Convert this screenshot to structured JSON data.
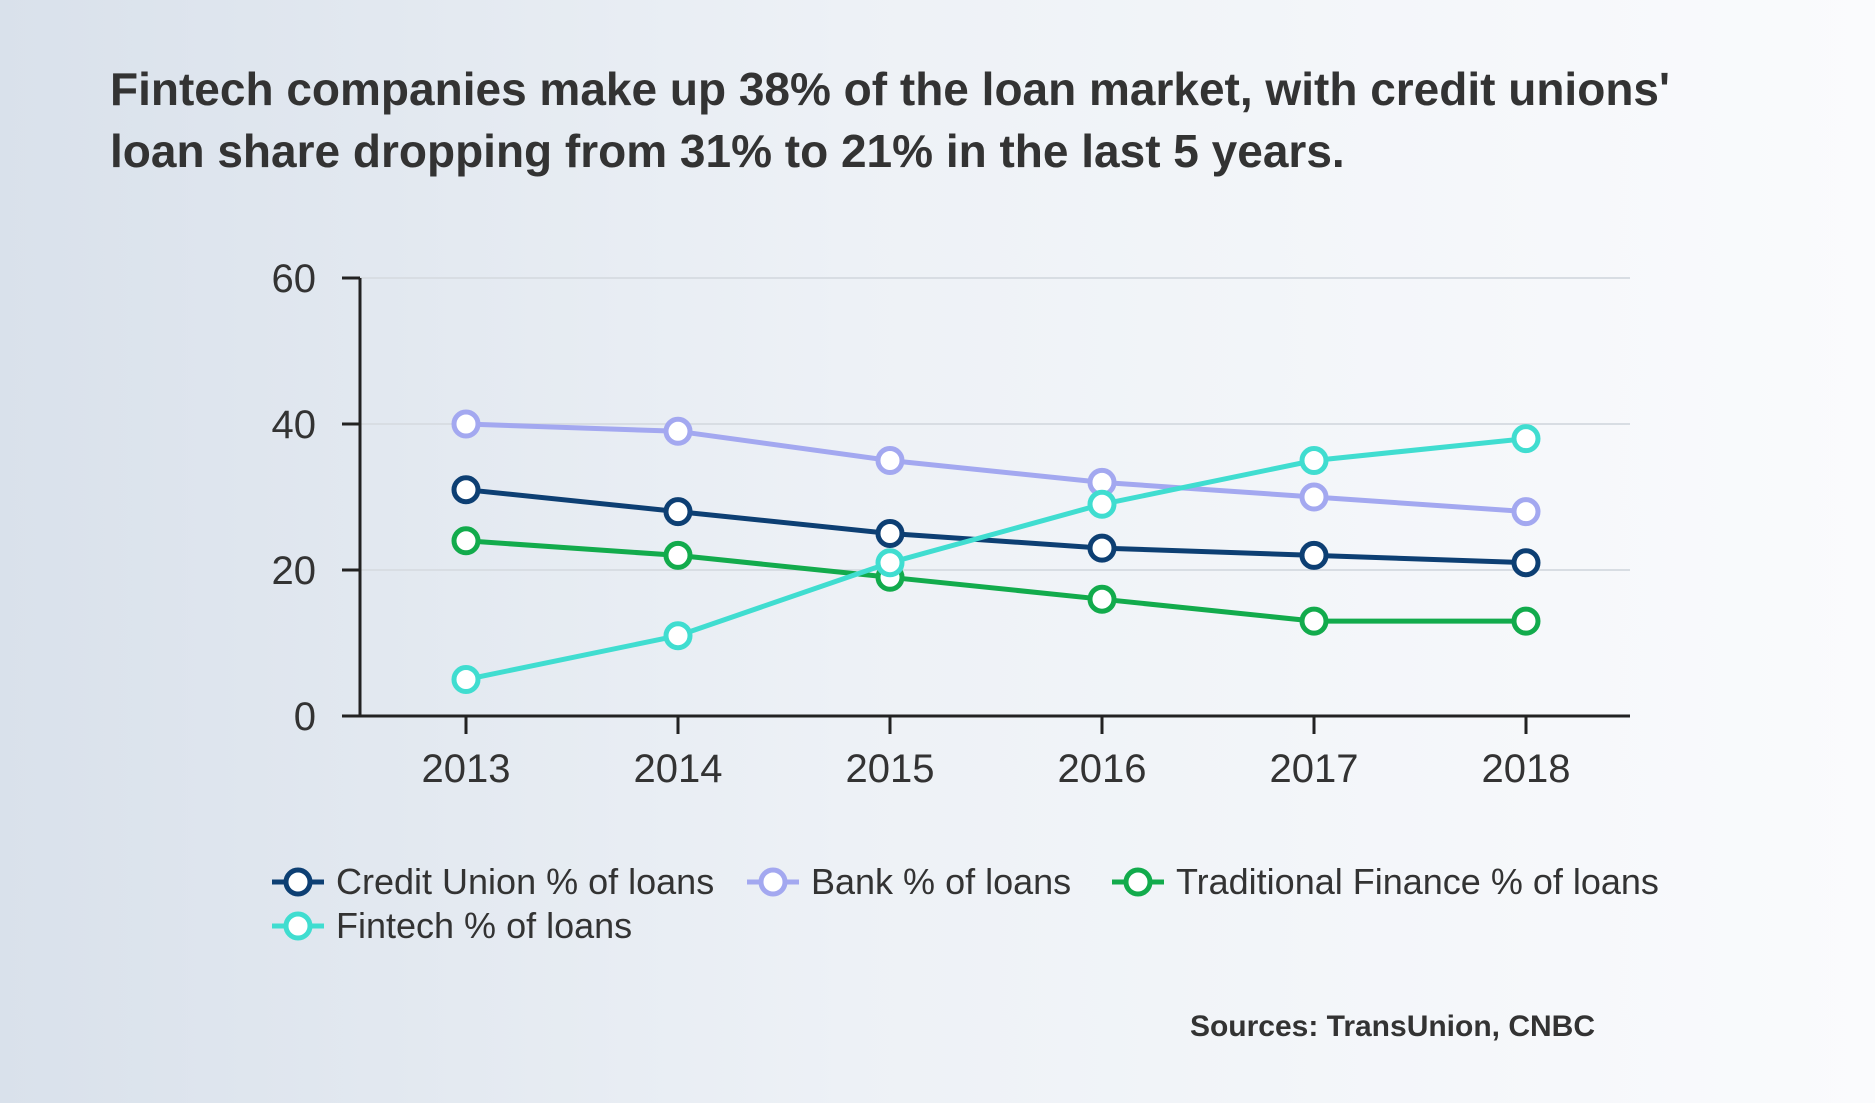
{
  "title": {
    "line1": "Fintech companies make up 38% of the loan market, with credit unions'",
    "line2": "loan share dropping from 31% to 21% in the last 5 years."
  },
  "source": "Sources: TransUnion, CNBC",
  "chart_data": {
    "type": "line",
    "x": [
      "2013",
      "2014",
      "2015",
      "2016",
      "2017",
      "2018"
    ],
    "ylim": [
      0,
      60
    ],
    "yticks": [
      0,
      20,
      40,
      60
    ],
    "grid": true,
    "legend_position": "bottom",
    "series": [
      {
        "name": "Credit Union % of loans",
        "color": "#0d3f73",
        "values": [
          31,
          28,
          25,
          23,
          22,
          21
        ]
      },
      {
        "name": "Bank % of loans",
        "color": "#a3a8f0",
        "values": [
          40,
          39,
          35,
          32,
          30,
          28
        ]
      },
      {
        "name": "Traditional Finance % of loans",
        "color": "#12ab4c",
        "values": [
          24,
          22,
          19,
          16,
          13,
          13
        ]
      },
      {
        "name": "Fintech % of loans",
        "color": "#40ddd0",
        "values": [
          5,
          11,
          21,
          29,
          35,
          38
        ]
      }
    ]
  }
}
